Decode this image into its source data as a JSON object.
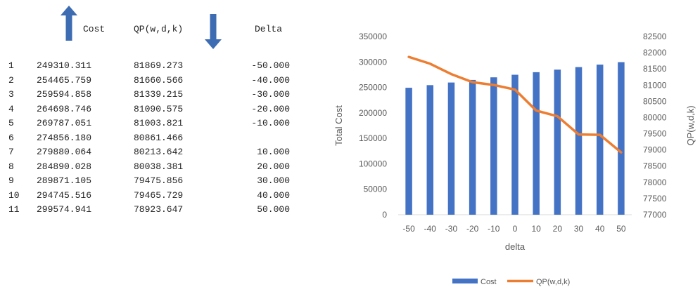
{
  "table": {
    "headers": {
      "cost": "Cost",
      "qp": "QP(w,d,k)",
      "delta": "Delta"
    },
    "arrows": {
      "cost": "arrow-up",
      "qp": "arrow-down",
      "color": "#3d6cb3"
    },
    "rows": [
      {
        "idx": "1",
        "cost": "249310.311",
        "qp": "81869.273",
        "delta": "-50.000"
      },
      {
        "idx": "2",
        "cost": "254465.759",
        "qp": "81660.566",
        "delta": "-40.000"
      },
      {
        "idx": "3",
        "cost": "259594.858",
        "qp": "81339.215",
        "delta": "-30.000"
      },
      {
        "idx": "4",
        "cost": "264698.746",
        "qp": "81090.575",
        "delta": "-20.000"
      },
      {
        "idx": "5",
        "cost": "269787.051",
        "qp": "81003.821",
        "delta": "-10.000"
      },
      {
        "idx": "6",
        "cost": "274856.180",
        "qp": "80861.466",
        "delta": ""
      },
      {
        "idx": "7",
        "cost": "279880.064",
        "qp": "80213.642",
        "delta": "10.000"
      },
      {
        "idx": "8",
        "cost": "284890.028",
        "qp": "80038.381",
        "delta": "20.000"
      },
      {
        "idx": "9",
        "cost": "289871.105",
        "qp": "79475.856",
        "delta": "30.000"
      },
      {
        "idx": "10",
        "cost": "294745.516",
        "qp": "79465.729",
        "delta": "40.000"
      },
      {
        "idx": "11",
        "cost": "299574.941",
        "qp": "78923.647",
        "delta": "50.000"
      }
    ]
  },
  "chart_data": {
    "type": "bar",
    "categories": [
      "-50",
      "-40",
      "-30",
      "-20",
      "-10",
      "0",
      "10",
      "20",
      "30",
      "40",
      "50"
    ],
    "series": [
      {
        "name": "Cost",
        "type": "bar",
        "axis": "left",
        "color": "#4472c4",
        "values": [
          249310.311,
          254465.759,
          259594.858,
          264698.746,
          269787.051,
          274856.18,
          279880.064,
          284890.028,
          289871.105,
          294745.516,
          299574.941
        ]
      },
      {
        "name": "QP(w,d,k)",
        "type": "line",
        "axis": "right",
        "color": "#ed7d31",
        "values": [
          81869.273,
          81660.566,
          81339.215,
          81090.575,
          81003.821,
          80861.466,
          80213.642,
          80038.381,
          79475.856,
          79465.729,
          78923.647
        ]
      }
    ],
    "xlabel": "delta",
    "ylabel": "Total Cost",
    "y2label": "QP(w,d,k)",
    "ylim": [
      0,
      350000
    ],
    "yticks": [
      "0",
      "50000",
      "100000",
      "150000",
      "200000",
      "250000",
      "300000",
      "350000"
    ],
    "y2lim": [
      77000,
      82500
    ],
    "y2ticks": [
      "77000",
      "77500",
      "78000",
      "78500",
      "79000",
      "79500",
      "80000",
      "80500",
      "81000",
      "81500",
      "82000",
      "82500"
    ],
    "grid": false,
    "legend": "bottom"
  }
}
